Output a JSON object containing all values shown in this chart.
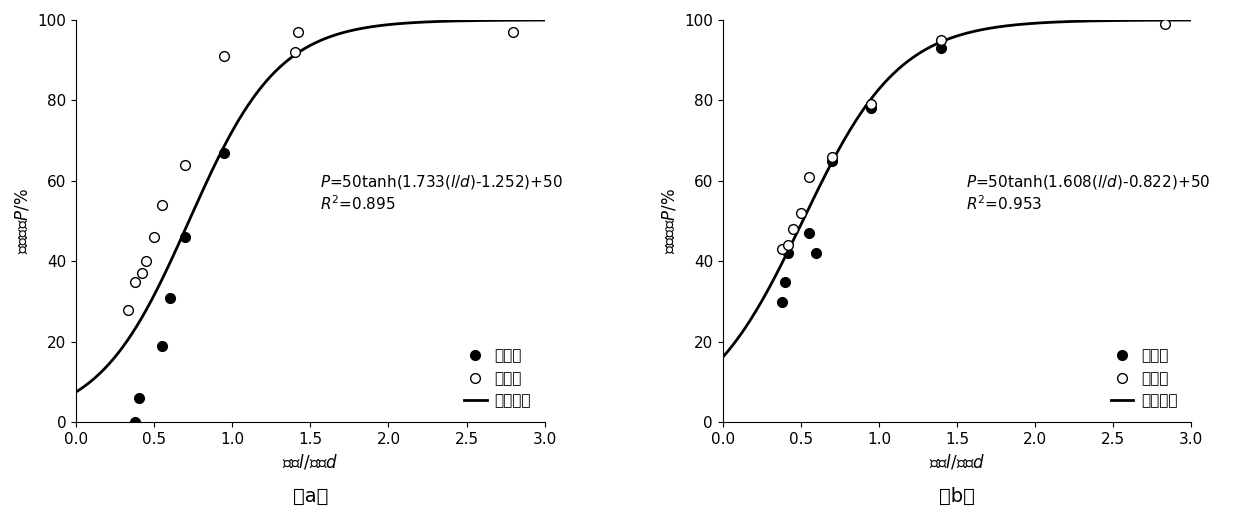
{
  "panel_a": {
    "parallel_x": [
      0.38,
      0.4,
      0.55,
      0.6,
      0.7,
      0.95
    ],
    "parallel_y": [
      0,
      6,
      19,
      31,
      46,
      67
    ],
    "radial_x": [
      0.33,
      0.38,
      0.42,
      0.45,
      0.5,
      0.55,
      0.7,
      0.95,
      1.4,
      1.42,
      2.8
    ],
    "radial_y": [
      28,
      35,
      37,
      40,
      46,
      54,
      64,
      91,
      92,
      97,
      97
    ],
    "a_param": 1.733,
    "b_param": 1.252,
    "r2": "0.895",
    "sublabel": "（a）"
  },
  "panel_b": {
    "parallel_x": [
      0.38,
      0.4,
      0.42,
      0.55,
      0.6,
      0.7,
      0.95,
      1.4
    ],
    "parallel_y": [
      30,
      35,
      42,
      47,
      42,
      65,
      78,
      93
    ],
    "radial_x": [
      0.38,
      0.42,
      0.45,
      0.5,
      0.55,
      0.7,
      0.95,
      1.4,
      2.83
    ],
    "radial_y": [
      43,
      44,
      48,
      52,
      61,
      66,
      79,
      95,
      99
    ],
    "a_param": 1.608,
    "b_param": 0.822,
    "r2": "0.953",
    "sublabel": "（b）"
  },
  "xlim": [
    0.0,
    3.0
  ],
  "ylim": [
    0,
    100
  ],
  "xticks": [
    0.0,
    0.5,
    1.0,
    1.5,
    2.0,
    2.5,
    3.0
  ],
  "yticks": [
    0,
    20,
    40,
    60,
    80,
    100
  ],
  "legend_parallel": "平行流",
  "legend_radial": "辐射流",
  "legend_fit": "拟合结果",
  "marker_size": 7,
  "linewidth": 2.0,
  "fontsize_tick": 11,
  "fontsize_label": 12,
  "fontsize_annot": 11,
  "fontsize_sublabel": 14
}
